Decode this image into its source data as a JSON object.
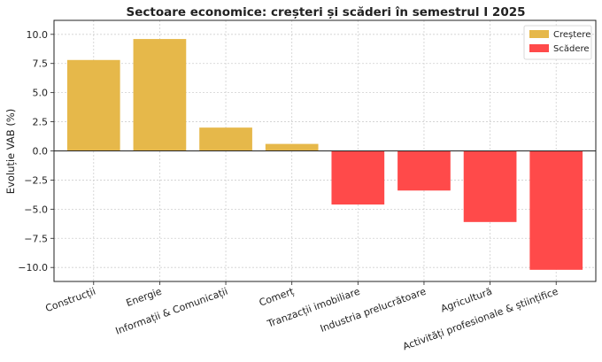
{
  "chart_data": {
    "type": "bar",
    "title": "Sectoare economice: creșteri și scăderi în semestrul I 2025",
    "xlabel": "",
    "ylabel": "Evoluție VAB (%)",
    "ylim": [
      -11.2,
      11.2
    ],
    "yticks": [
      10.0,
      7.5,
      5.0,
      2.5,
      0.0,
      -2.5,
      -5.0,
      -7.5,
      -10.0
    ],
    "ytick_labels": [
      "10.0",
      "7.5",
      "5.0",
      "2.5",
      "0.0",
      "−2.5",
      "−5.0",
      "−7.5",
      "−10.0"
    ],
    "categories": [
      "Construcții",
      "Energie",
      "Informații & Comunicații",
      "Comerț",
      "Tranzacții imobiliare",
      "Industria prelucrătoare",
      "Agricultură",
      "Activități profesionale & științifice"
    ],
    "values": [
      7.8,
      9.6,
      2.0,
      0.6,
      -4.6,
      -3.4,
      -6.1,
      -10.2
    ],
    "colors": {
      "increase": "#e6b84a",
      "decrease": "#ff4a4a",
      "grid": "#cfcfcf",
      "axis": "#222222"
    },
    "grid": true,
    "legend": {
      "placement": "top-right",
      "entries": [
        {
          "label": "Creștere",
          "color": "#e6b84a"
        },
        {
          "label": "Scădere",
          "color": "#ff4a4a"
        }
      ]
    }
  }
}
